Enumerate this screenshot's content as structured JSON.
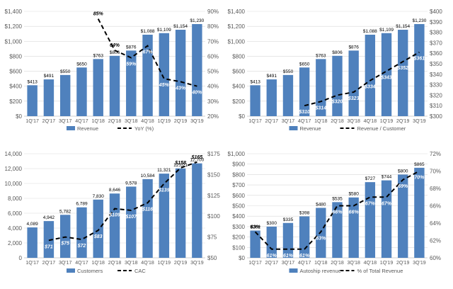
{
  "colors": {
    "bar": "#4f81bd",
    "line": "#000000",
    "axis_text": "#595959",
    "grid": "#d9d9d9",
    "bar_label_inside": "#ffffff",
    "bar_label_top": "#000000"
  },
  "chart_data": [
    {
      "type": "bar",
      "combo": "bar+line",
      "categories": [
        "1Q'17",
        "2Q'17",
        "3Q'17",
        "4Q'17",
        "1Q'18",
        "2Q'18",
        "3Q'18",
        "4Q'18",
        "1Q'19",
        "2Q'19",
        "3Q'19"
      ],
      "series": [
        {
          "name": "Revenue",
          "type": "bar",
          "axis": "left",
          "values": [
            413,
            491,
            550,
            650,
            763,
            806,
            876,
            1088,
            1109,
            1154,
            1230
          ],
          "labels": [
            "$413",
            "$491",
            "$550",
            "$650",
            "$763",
            "$806",
            "$876",
            "$1,088",
            "$1,109",
            "$1,154",
            "$1,230"
          ]
        },
        {
          "name": "YoY (%)",
          "type": "line",
          "dash": true,
          "axis": "right",
          "values": [
            null,
            null,
            null,
            null,
            85,
            64,
            59,
            67,
            45,
            43,
            40
          ],
          "labels": [
            null,
            null,
            null,
            null,
            "85%",
            "64%",
            "59%",
            "67%",
            "45%",
            "43%",
            "40%"
          ]
        }
      ],
      "y_left": {
        "min": 0,
        "max": 1400,
        "step": 200,
        "ticks": [
          "$0",
          "$200",
          "$400",
          "$600",
          "$800",
          "$1,000",
          "$1,200",
          "$1,400"
        ]
      },
      "y_right": {
        "min": 20,
        "max": 90,
        "step": 10,
        "ticks": [
          "20%",
          "30%",
          "40%",
          "50%",
          "60%",
          "70%",
          "80%",
          "90%"
        ]
      },
      "legend": "bottom"
    },
    {
      "type": "bar",
      "combo": "bar+line",
      "categories": [
        "1Q'17",
        "2Q'17",
        "3Q'17",
        "4Q'17",
        "1Q'18",
        "2Q'18",
        "3Q'18",
        "4Q'18",
        "1Q'19",
        "2Q'19",
        "3Q'19"
      ],
      "series": [
        {
          "name": "Revenue",
          "type": "bar",
          "axis": "left",
          "values": [
            413,
            491,
            550,
            650,
            763,
            806,
            876,
            1088,
            1109,
            1154,
            1230
          ],
          "labels": [
            "$413",
            "$491",
            "$550",
            "$650",
            "$763",
            "$806",
            "$876",
            "$1,088",
            "$1,109",
            "$1,154",
            "$1,230"
          ]
        },
        {
          "name": "Revenue / Customer",
          "type": "line",
          "dash": true,
          "axis": "right",
          "values": [
            null,
            null,
            null,
            310,
            314,
            320,
            323,
            334,
            343,
            352,
            361
          ],
          "labels": [
            null,
            null,
            null,
            "$310",
            "$314",
            "$320",
            "$323",
            "$334",
            "$343",
            "$352",
            "$361"
          ]
        }
      ],
      "y_left": {
        "min": 0,
        "max": 1400,
        "step": 200,
        "ticks": [
          "$0",
          "$200",
          "$400",
          "$600",
          "$800",
          "$1,000",
          "$1,200",
          "$1,400"
        ]
      },
      "y_right": {
        "min": 300,
        "max": 400,
        "step": 10,
        "ticks": [
          "$300",
          "$310",
          "$320",
          "$330",
          "$340",
          "$350",
          "$360",
          "$370",
          "$380",
          "$390",
          "$400"
        ]
      },
      "legend": "bottom"
    },
    {
      "type": "bar",
      "combo": "bar+line",
      "categories": [
        "1Q'17",
        "2Q'17",
        "3Q'17",
        "4Q'17",
        "1Q'18",
        "2Q'18",
        "3Q'18",
        "4Q'18",
        "1Q'19",
        "2Q'19",
        "3Q'19"
      ],
      "series": [
        {
          "name": "Customers",
          "type": "bar",
          "axis": "left",
          "values": [
            4089,
            4942,
            5782,
            6789,
            7830,
            8646,
            9578,
            10584,
            11321,
            12021,
            12700
          ],
          "labels": [
            "4,089",
            "4,942",
            "5,782",
            "6,789",
            "7,830",
            "8,646",
            "9,578",
            "10,584",
            "11,321",
            "12,021",
            "12,700"
          ]
        },
        {
          "name": "CAC",
          "type": "line",
          "dash": true,
          "axis": "right",
          "values": [
            null,
            71,
            75,
            72,
            83,
            109,
            107,
            116,
            139,
            158,
            165
          ],
          "labels": [
            null,
            "$71",
            "$75",
            "$72",
            "$83",
            "$109",
            "$107",
            "$116",
            "$139",
            "$158",
            "$165"
          ]
        }
      ],
      "y_left": {
        "min": 0,
        "max": 14000,
        "step": 2000,
        "ticks": [
          "0",
          "2,000",
          "4,000",
          "6,000",
          "8,000",
          "10,000",
          "12,000",
          "14,000"
        ]
      },
      "y_right": {
        "min": 50,
        "max": 175,
        "step": 25,
        "ticks": [
          "$50",
          "$75",
          "$100",
          "$125",
          "$150",
          "$175"
        ]
      },
      "legend": "bottom"
    },
    {
      "type": "bar",
      "combo": "bar+line",
      "categories": [
        "1Q'17",
        "2Q'17",
        "3Q'17",
        "4Q'17",
        "1Q'18",
        "2Q'18",
        "3Q'18",
        "4Q'18",
        "1Q'19",
        "2Q'19",
        "3Q'19"
      ],
      "series": [
        {
          "name": "Autoship revenue",
          "type": "bar",
          "axis": "left",
          "values": [
            262,
            300,
            335,
            398,
            480,
            535,
            580,
            727,
            744,
            800,
            865
          ],
          "labels": [
            "$262",
            "$300",
            "$335",
            "$398",
            "$480",
            "$535",
            "$580",
            "$727",
            "$744",
            "$800",
            "$865"
          ]
        },
        {
          "name": "% of Total Revenue",
          "type": "line",
          "dash": true,
          "axis": "right",
          "values": [
            63,
            61,
            61,
            61,
            63,
            66,
            66,
            67,
            67,
            69,
            70
          ],
          "labels": [
            "63%",
            "61%",
            "61%",
            "61%",
            "63%",
            "66%",
            "66%",
            "67%",
            "67%",
            "69%",
            "70%"
          ]
        }
      ],
      "y_left": {
        "min": 0,
        "max": 1000,
        "step": 100,
        "ticks": [
          "$0",
          "$100",
          "$200",
          "$300",
          "$400",
          "$500",
          "$600",
          "$700",
          "$800",
          "$900",
          "$1,000"
        ]
      },
      "y_right": {
        "min": 60,
        "max": 72,
        "step": 2,
        "ticks": [
          "60%",
          "62%",
          "64%",
          "66%",
          "68%",
          "70%",
          "72%"
        ]
      },
      "legend": "bottom"
    }
  ]
}
